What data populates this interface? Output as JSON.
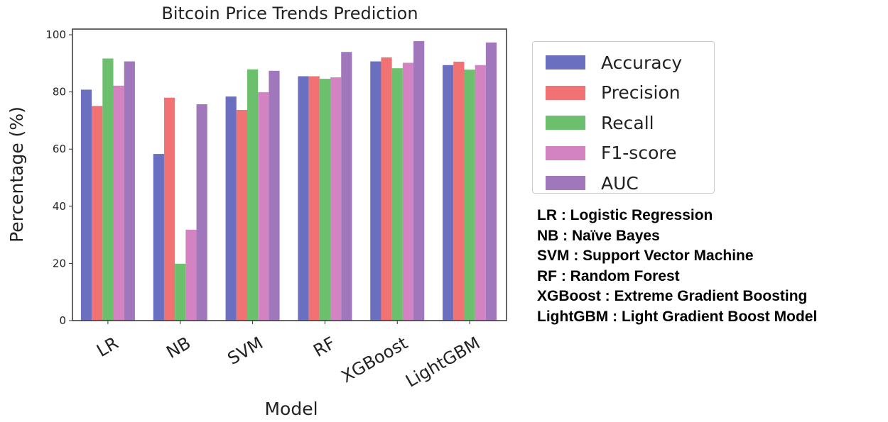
{
  "chart_data": {
    "type": "bar",
    "title": "Bitcoin Price Trends Prediction",
    "xlabel": "Model",
    "ylabel": "Percentage (%)",
    "ylim": [
      0,
      102
    ],
    "yticks": [
      0,
      20,
      40,
      60,
      80,
      100
    ],
    "grid": false,
    "legend_position": "right",
    "categories": [
      "LR",
      "NB",
      "SVM",
      "RF",
      "XGBoost",
      "LightGBM"
    ],
    "series": [
      {
        "name": "Accuracy",
        "color": "#6a6fbf",
        "values": [
          80.8,
          58.3,
          78.4,
          85.5,
          90.7,
          89.4
        ]
      },
      {
        "name": "Precision",
        "color": "#f07272",
        "values": [
          75.1,
          78.0,
          73.7,
          85.5,
          92.1,
          90.6
        ]
      },
      {
        "name": "Recall",
        "color": "#6cbf6c",
        "values": [
          91.7,
          19.9,
          87.9,
          84.6,
          88.3,
          87.8
        ]
      },
      {
        "name": "F1-score",
        "color": "#d383c2",
        "values": [
          82.2,
          31.8,
          79.9,
          85.1,
          90.2,
          89.4
        ]
      },
      {
        "name": "AUC",
        "color": "#a077bb",
        "values": [
          90.7,
          75.7,
          87.4,
          94.0,
          97.8,
          97.3
        ]
      }
    ]
  },
  "abbreviations": [
    "LR : Logistic Regression",
    "NB : Naïve Bayes",
    "SVM : Support Vector Machine",
    "RF : Random Forest",
    "XGBoost : Extreme Gradient Boosting",
    "LightGBM : Light Gradient Boost Model"
  ]
}
